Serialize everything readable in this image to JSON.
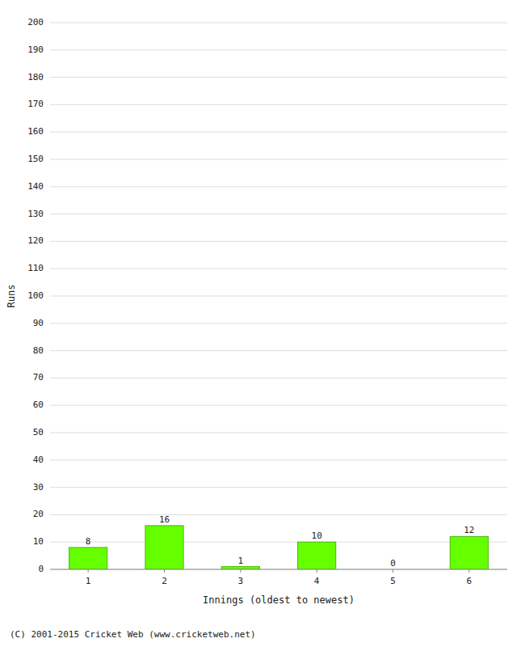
{
  "chart_data": {
    "type": "bar",
    "categories": [
      1,
      2,
      3,
      4,
      5,
      6
    ],
    "values": [
      8,
      16,
      1,
      10,
      0,
      12
    ],
    "color": "#66ff00",
    "xlabel": "Innings (oldest to newest)",
    "ylabel": "Runs",
    "ylim": [
      0,
      200
    ],
    "yticks": [
      0,
      10,
      20,
      30,
      40,
      50,
      60,
      70,
      80,
      90,
      100,
      110,
      120,
      130,
      140,
      150,
      160,
      170,
      180,
      190,
      200
    ],
    "grid": true,
    "data_labels": true,
    "footer": "(C) 2001-2015 Cricket Web (www.cricketweb.net)"
  }
}
